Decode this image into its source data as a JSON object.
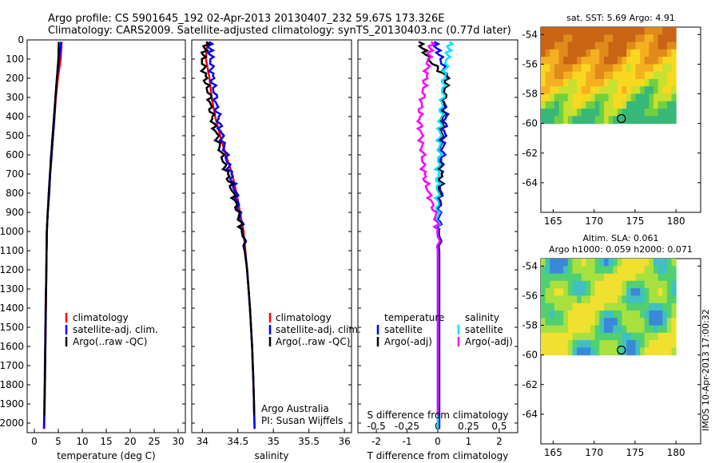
{
  "header": {
    "title_line1": "Argo profile: CS 5901645_192 02-Apr-2013 20130407_232 59.67S 173.326E",
    "title_line2": "Climatology: CARS2009. Satellite-adjusted climatology: synTS_20130403.nc (0.77d later)"
  },
  "stamp": "IMOS 10-Apr-2013 17:00:32",
  "colors": {
    "climatology": "#ff0000",
    "satellite": "#0000ff",
    "argo": "#000000",
    "satellite_s": "#00e0ff",
    "argo_s": "#ff00ff"
  },
  "chart_data": [
    {
      "type": "line",
      "panel": "temperature",
      "xlabel": "temperature (deg C)",
      "ylabel": "",
      "xlim": [
        -1.5,
        31.5
      ],
      "ylim": [
        2050,
        0
      ],
      "xticks": [
        0,
        5,
        10,
        15,
        20,
        25,
        30
      ],
      "yticks": [
        0,
        100,
        200,
        300,
        400,
        500,
        600,
        700,
        800,
        900,
        1000,
        1100,
        1200,
        1300,
        1400,
        1500,
        1600,
        1700,
        1800,
        1900,
        2000
      ],
      "legend": [
        "climatology",
        "satellite-adj. clim.",
        "Argo(..raw -QC)"
      ],
      "series": [
        {
          "name": "climatology",
          "x": [
            5.7,
            5.5,
            4.9,
            4.5,
            4.2,
            3.9,
            3.6,
            3.3,
            3.1,
            2.8,
            2.6,
            2.5,
            2.4,
            2.3,
            2.2,
            2.1,
            2.05
          ],
          "y": [
            10,
            100,
            200,
            300,
            400,
            500,
            600,
            700,
            800,
            900,
            1000,
            1200,
            1400,
            1600,
            1800,
            1950,
            2030
          ]
        },
        {
          "name": "satellite-adj. clim.",
          "x": [
            5.6,
            5.2,
            4.7,
            4.4,
            4.2,
            3.9,
            3.6,
            3.3,
            3.1,
            2.8,
            2.6,
            2.5,
            2.35,
            2.25,
            2.15,
            2.05,
            2.0
          ],
          "y": [
            10,
            100,
            200,
            300,
            400,
            500,
            600,
            700,
            800,
            900,
            1000,
            1200,
            1400,
            1600,
            1800,
            1950,
            2030
          ]
        },
        {
          "name": "Argo(..raw -QC)",
          "x": [
            5.1,
            5.0,
            4.7,
            4.4,
            4.1,
            3.8,
            3.5,
            3.25,
            3.0,
            2.8,
            2.6,
            2.5,
            2.4,
            2.3,
            2.2,
            2.1
          ],
          "y": [
            10,
            100,
            200,
            300,
            400,
            500,
            600,
            700,
            800,
            900,
            1000,
            1200,
            1400,
            1600,
            1800,
            1960
          ]
        }
      ]
    },
    {
      "type": "line",
      "panel": "salinity",
      "xlabel": "salinity",
      "xlim": [
        33.85,
        36.1
      ],
      "ylim": [
        2050,
        0
      ],
      "xticks": [
        34,
        34.5,
        35,
        35.5,
        36
      ],
      "legend": [
        "climatology",
        "satellite-adj. clim.",
        "Argo(..raw -QC)"
      ],
      "annotation": [
        "Argo Australia",
        "PI: Susan Wijffels"
      ],
      "series": [
        {
          "name": "climatology",
          "x": [
            34.07,
            34.05,
            34.1,
            34.13,
            34.18,
            34.25,
            34.33,
            34.42,
            34.48,
            34.53,
            34.58,
            34.63,
            34.67,
            34.7,
            34.72,
            34.73,
            34.735
          ],
          "y": [
            10,
            100,
            200,
            300,
            400,
            500,
            600,
            700,
            800,
            900,
            1000,
            1200,
            1400,
            1600,
            1800,
            1950,
            2030
          ]
        },
        {
          "name": "satellite-adj. clim.",
          "x": [
            34.1,
            34.12,
            34.14,
            34.18,
            34.22,
            34.27,
            34.33,
            34.4,
            34.47,
            34.52,
            34.57,
            34.63,
            34.67,
            34.7,
            34.72,
            34.73,
            34.735
          ],
          "y": [
            10,
            100,
            200,
            300,
            400,
            500,
            600,
            700,
            800,
            900,
            1000,
            1200,
            1400,
            1600,
            1800,
            1950,
            2030
          ]
        },
        {
          "name": "Argo(..raw -QC)",
          "x": [
            34.06,
            34.0,
            34.04,
            34.1,
            34.13,
            34.2,
            34.27,
            34.35,
            34.43,
            34.5,
            34.56,
            34.63,
            34.67,
            34.7,
            34.72,
            34.73
          ],
          "y": [
            10,
            100,
            200,
            300,
            400,
            500,
            600,
            700,
            800,
            900,
            1000,
            1200,
            1400,
            1600,
            1800,
            1960
          ]
        }
      ]
    },
    {
      "type": "line",
      "panel": "difference",
      "xlabel": "T difference from climatology",
      "xlabel_top": "S difference from climatology",
      "xlim": [
        -2.6,
        2.6
      ],
      "ylim": [
        2050,
        0
      ],
      "xticks": [
        -2,
        -1,
        0,
        1,
        2
      ],
      "xticks_s": [
        -0.5,
        -0.25,
        0,
        0.25,
        0.5
      ],
      "legend_left_title": "temperature",
      "legend_right_title": "salinity",
      "legend": [
        "satellite",
        "Argo(-adj)",
        "satellite",
        "Argo(-adj)"
      ],
      "series": [
        {
          "name": "temperature satellite",
          "x": [
            -0.1,
            0.1,
            0.3,
            0.2,
            0.25,
            0.2,
            0.15,
            0.1,
            0.1,
            0.05,
            0.05,
            0.05,
            0.05,
            0.05,
            0.05,
            0.05,
            0.05
          ],
          "y": [
            10,
            100,
            200,
            300,
            400,
            500,
            600,
            700,
            800,
            900,
            1000,
            1200,
            1400,
            1600,
            1800,
            1950,
            2030
          ]
        },
        {
          "name": "temperature Argo(-adj)",
          "x": [
            -0.6,
            -0.3,
            0.3,
            0.2,
            0.15,
            0.1,
            0.05,
            0.1,
            0.05,
            0.0,
            0.0,
            0.0,
            0.0,
            0.0,
            0.0,
            0.0
          ],
          "y": [
            10,
            100,
            200,
            300,
            400,
            500,
            600,
            700,
            800,
            900,
            1000,
            1200,
            1400,
            1600,
            1800,
            1960
          ]
        },
        {
          "name": "salinity satellite",
          "x": [
            0.4,
            0.3,
            0.2,
            0.15,
            0.1,
            0.05,
            0.05,
            0.0,
            0.0,
            0.0,
            0.0,
            0.0,
            0.0,
            0.0,
            0.0,
            0.0,
            0.0
          ],
          "y": [
            10,
            100,
            200,
            300,
            400,
            500,
            600,
            700,
            800,
            900,
            1000,
            1200,
            1400,
            1600,
            1800,
            1950,
            2030
          ]
        },
        {
          "name": "salinity Argo(-adj)",
          "x": [
            -0.2,
            -0.3,
            -0.4,
            -0.5,
            -0.6,
            -0.55,
            -0.5,
            -0.45,
            -0.3,
            -0.1,
            0.0,
            0.0,
            0.0,
            0.0,
            0.0,
            0.0
          ],
          "y": [
            10,
            100,
            200,
            300,
            400,
            500,
            600,
            700,
            800,
            900,
            1000,
            1200,
            1400,
            1600,
            1800,
            1960
          ]
        }
      ]
    },
    {
      "type": "heatmap",
      "panel": "sst-map",
      "title": "sat. SST: 5.69 Argo: 4.91",
      "xlim": [
        163.5,
        183
      ],
      "ylim": [
        -66,
        -53.5
      ],
      "xticks": [
        165,
        170,
        175,
        180
      ],
      "yticks": [
        -54,
        -56,
        -58,
        -60,
        -62,
        -64
      ],
      "argo_position": {
        "lon": 173.326,
        "lat": -59.67
      }
    },
    {
      "type": "heatmap",
      "panel": "sla-map",
      "title_line1": "Altim. SLA: 0.061",
      "title_line2": "Argo h1000: 0.059 h2000: 0.071",
      "xlim": [
        163.5,
        183
      ],
      "ylim": [
        -66,
        -53.5
      ],
      "xticks": [
        165,
        170,
        175,
        180
      ],
      "yticks": [
        -54,
        -56,
        -58,
        -60,
        -62,
        -64
      ],
      "argo_position": {
        "lon": 173.326,
        "lat": -59.67
      }
    }
  ]
}
